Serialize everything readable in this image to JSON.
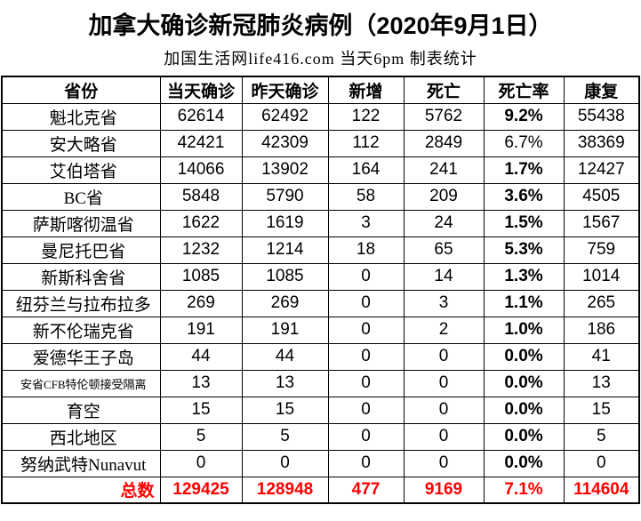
{
  "title": "加拿大确诊新冠肺炎病例（2020年9月1日）",
  "subtitle": "加国生活网life416.com 当天6pm 制表统计",
  "colors": {
    "text": "#000000",
    "highlight_red": "#ff0000",
    "border": "#000000",
    "background": "#ffffff"
  },
  "table": {
    "headers": [
      "省份",
      "当天确诊",
      "昨天确诊",
      "新增",
      "死亡",
      "死亡率",
      "康复"
    ],
    "rows": [
      {
        "province": "魁北克省",
        "today": "62614",
        "yesterday": "62492",
        "new": "122",
        "deaths": "5762",
        "rate": "9.2%",
        "recovered": "55438",
        "rate_style": "red",
        "small_label": false
      },
      {
        "province": "安大略省",
        "today": "42421",
        "yesterday": "42309",
        "new": "112",
        "deaths": "2849",
        "rate": "6.7%",
        "recovered": "38369",
        "rate_style": "normal",
        "small_label": false
      },
      {
        "province": "艾伯塔省",
        "today": "14066",
        "yesterday": "13902",
        "new": "164",
        "deaths": "241",
        "rate": "1.7%",
        "recovered": "12427",
        "rate_style": "bold",
        "small_label": false
      },
      {
        "province": "BC省",
        "today": "5848",
        "yesterday": "5790",
        "new": "58",
        "deaths": "209",
        "rate": "3.6%",
        "recovered": "4505",
        "rate_style": "bold",
        "small_label": false
      },
      {
        "province": "萨斯喀彻温省",
        "today": "1622",
        "yesterday": "1619",
        "new": "3",
        "deaths": "24",
        "rate": "1.5%",
        "recovered": "1567",
        "rate_style": "bold",
        "small_label": false
      },
      {
        "province": "曼尼托巴省",
        "today": "1232",
        "yesterday": "1214",
        "new": "18",
        "deaths": "65",
        "rate": "5.3%",
        "recovered": "759",
        "rate_style": "bold",
        "small_label": false
      },
      {
        "province": "新斯科舍省",
        "today": "1085",
        "yesterday": "1085",
        "new": "0",
        "deaths": "14",
        "rate": "1.3%",
        "recovered": "1014",
        "rate_style": "bold",
        "small_label": false
      },
      {
        "province": "纽芬兰与拉布拉多",
        "today": "269",
        "yesterday": "269",
        "new": "0",
        "deaths": "3",
        "rate": "1.1%",
        "recovered": "265",
        "rate_style": "bold",
        "small_label": false
      },
      {
        "province": "新不伦瑞克省",
        "today": "191",
        "yesterday": "191",
        "new": "0",
        "deaths": "2",
        "rate": "1.0%",
        "recovered": "186",
        "rate_style": "bold",
        "small_label": false
      },
      {
        "province": "爱德华王子岛",
        "today": "44",
        "yesterday": "44",
        "new": "0",
        "deaths": "0",
        "rate": "0.0%",
        "recovered": "41",
        "rate_style": "bold",
        "small_label": false
      },
      {
        "province": "安省CFB特伦顿接受隔离",
        "today": "13",
        "yesterday": "13",
        "new": "0",
        "deaths": "0",
        "rate": "0.0%",
        "recovered": "13",
        "rate_style": "bold",
        "small_label": true
      },
      {
        "province": "育空",
        "today": "15",
        "yesterday": "15",
        "new": "0",
        "deaths": "0",
        "rate": "0.0%",
        "recovered": "15",
        "rate_style": "bold",
        "small_label": false
      },
      {
        "province": "西北地区",
        "today": "5",
        "yesterday": "5",
        "new": "0",
        "deaths": "0",
        "rate": "0.0%",
        "recovered": "5",
        "rate_style": "bold",
        "small_label": false
      },
      {
        "province": "努纳武特Nunavut",
        "today": "0",
        "yesterday": "0",
        "new": "0",
        "deaths": "0",
        "rate": "0.0%",
        "recovered": "0",
        "rate_style": "bold",
        "small_label": false
      }
    ],
    "total": {
      "label": "总数",
      "today": "129425",
      "yesterday": "128948",
      "new": "477",
      "deaths": "9169",
      "rate": "7.1%",
      "recovered": "114604"
    }
  }
}
